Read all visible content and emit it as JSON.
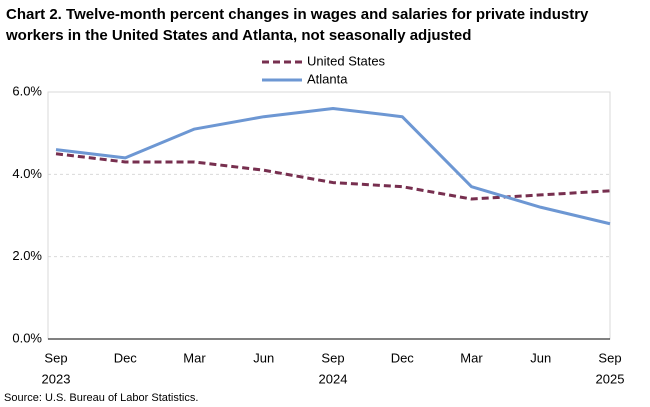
{
  "chart_data": {
    "type": "line",
    "title": "Chart 2. Twelve-month percent changes in wages and salaries for private industry workers in the United States and Atlanta, not seasonally adjusted",
    "categories": [
      "Sep",
      "Dec",
      "Mar",
      "Jun",
      "Sep",
      "Dec",
      "Mar",
      "Jun",
      "Sep"
    ],
    "category_years": [
      "2023",
      null,
      null,
      null,
      "2024",
      null,
      null,
      null,
      "2025"
    ],
    "series": [
      {
        "name": "United States",
        "color": "#772f4f",
        "style": "dashed",
        "values": [
          4.5,
          4.3,
          4.3,
          4.1,
          3.8,
          3.7,
          3.4,
          3.5,
          3.6
        ]
      },
      {
        "name": "Atlanta",
        "color": "#6d97d3",
        "style": "solid",
        "values": [
          4.6,
          4.4,
          5.1,
          5.4,
          5.6,
          5.4,
          3.7,
          3.2,
          2.8
        ]
      }
    ],
    "ylim": [
      0,
      6
    ],
    "yticks": [
      {
        "value": 0,
        "label": "0.0%"
      },
      {
        "value": 2,
        "label": "2.0%"
      },
      {
        "value": 4,
        "label": "4.0%"
      },
      {
        "value": 6,
        "label": "6.0%"
      }
    ],
    "grid": true,
    "legend": "top",
    "source": "Source: U.S. Bureau of Labor Statistics."
  }
}
